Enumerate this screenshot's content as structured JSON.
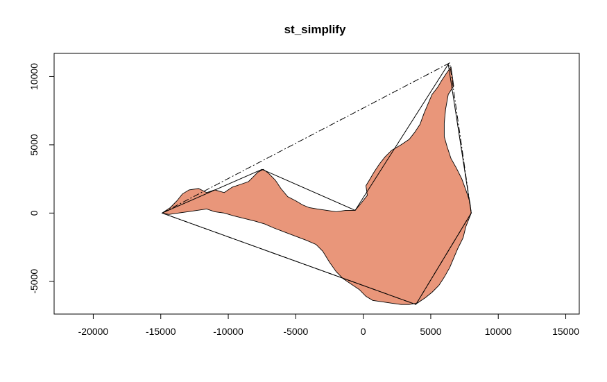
{
  "chart_data": {
    "type": "area",
    "title": "st_simplify",
    "xlabel": "",
    "ylabel": "",
    "xlim": [
      -22900,
      16000
    ],
    "ylim": [
      -7400,
      11700
    ],
    "x_ticks": [
      -20000,
      -15000,
      -10000,
      -5000,
      0,
      5000,
      10000,
      15000
    ],
    "y_ticks": [
      -5000,
      0,
      5000,
      10000
    ],
    "x_tick_labels": [
      "-20000",
      "-15000",
      "-10000",
      "-5000",
      "0",
      "5000",
      "10000",
      "15000"
    ],
    "y_tick_labels": [
      "-5000",
      "0",
      "5000",
      "10000"
    ],
    "grid": false,
    "legend": "none",
    "fill_color": "#E9967A",
    "outline_color": "#000000",
    "polygon": [
      [
        -14900,
        0
      ],
      [
        -14300,
        400
      ],
      [
        -13800,
        900
      ],
      [
        -13400,
        1400
      ],
      [
        -12900,
        1700
      ],
      [
        -12200,
        1800
      ],
      [
        -11600,
        1500
      ],
      [
        -11000,
        1700
      ],
      [
        -10300,
        1500
      ],
      [
        -9700,
        1900
      ],
      [
        -9100,
        2100
      ],
      [
        -8500,
        2300
      ],
      [
        -7800,
        3000
      ],
      [
        -7400,
        3200
      ],
      [
        -7000,
        2900
      ],
      [
        -6500,
        2400
      ],
      [
        -6100,
        1800
      ],
      [
        -5600,
        1200
      ],
      [
        -5000,
        900
      ],
      [
        -4500,
        600
      ],
      [
        -4000,
        400
      ],
      [
        -3400,
        300
      ],
      [
        -2700,
        200
      ],
      [
        -2000,
        100
      ],
      [
        -1300,
        200
      ],
      [
        -600,
        200
      ],
      [
        -100,
        800
      ],
      [
        300,
        1300
      ],
      [
        200,
        2000
      ],
      [
        500,
        2500
      ],
      [
        800,
        3000
      ],
      [
        1200,
        3600
      ],
      [
        1600,
        4100
      ],
      [
        2100,
        4600
      ],
      [
        2800,
        5000
      ],
      [
        3400,
        5400
      ],
      [
        3800,
        5900
      ],
      [
        4200,
        6500
      ],
      [
        4500,
        7300
      ],
      [
        4800,
        8000
      ],
      [
        5100,
        8700
      ],
      [
        5500,
        9200
      ],
      [
        5800,
        9700
      ],
      [
        6200,
        10300
      ],
      [
        6500,
        10700
      ],
      [
        6600,
        10000
      ],
      [
        6700,
        9300
      ],
      [
        6300,
        8700
      ],
      [
        6100,
        7600
      ],
      [
        6000,
        6600
      ],
      [
        6000,
        5600
      ],
      [
        6200,
        4900
      ],
      [
        6500,
        4000
      ],
      [
        6900,
        3300
      ],
      [
        7300,
        2500
      ],
      [
        7600,
        1700
      ],
      [
        7900,
        800
      ],
      [
        8000,
        0
      ],
      [
        7600,
        -1000
      ],
      [
        7400,
        -1800
      ],
      [
        7000,
        -2600
      ],
      [
        6700,
        -3300
      ],
      [
        6400,
        -4000
      ],
      [
        6000,
        -4700
      ],
      [
        5600,
        -5300
      ],
      [
        5100,
        -5800
      ],
      [
        4600,
        -6200
      ],
      [
        4000,
        -6600
      ],
      [
        3400,
        -6700
      ],
      [
        2800,
        -6700
      ],
      [
        2100,
        -6600
      ],
      [
        1400,
        -6500
      ],
      [
        700,
        -6400
      ],
      [
        200,
        -6100
      ],
      [
        -300,
        -5600
      ],
      [
        -900,
        -5200
      ],
      [
        -1500,
        -4800
      ],
      [
        -2000,
        -4300
      ],
      [
        -2500,
        -3600
      ],
      [
        -3000,
        -2800
      ],
      [
        -3500,
        -2300
      ],
      [
        -4200,
        -2000
      ],
      [
        -5000,
        -1700
      ],
      [
        -5800,
        -1400
      ],
      [
        -6600,
        -1100
      ],
      [
        -7300,
        -800
      ],
      [
        -8000,
        -600
      ],
      [
        -8800,
        -400
      ],
      [
        -9600,
        -200
      ],
      [
        -10300,
        0
      ],
      [
        -11000,
        100
      ],
      [
        -11600,
        300
      ],
      [
        -12300,
        200
      ],
      [
        -13000,
        100
      ],
      [
        -13700,
        0
      ],
      [
        -14400,
        -100
      ]
    ],
    "simplified": [
      [
        -14900,
        0
      ],
      [
        -7500,
        3200
      ],
      [
        -600,
        200
      ],
      [
        6300,
        10900
      ],
      [
        8000,
        0
      ],
      [
        3900,
        -6700
      ],
      [
        -14900,
        0
      ]
    ],
    "hull": [
      [
        -14900,
        0
      ],
      [
        6400,
        11000
      ],
      [
        8000,
        0
      ],
      [
        3900,
        -6700
      ],
      [
        -14900,
        0
      ]
    ]
  }
}
